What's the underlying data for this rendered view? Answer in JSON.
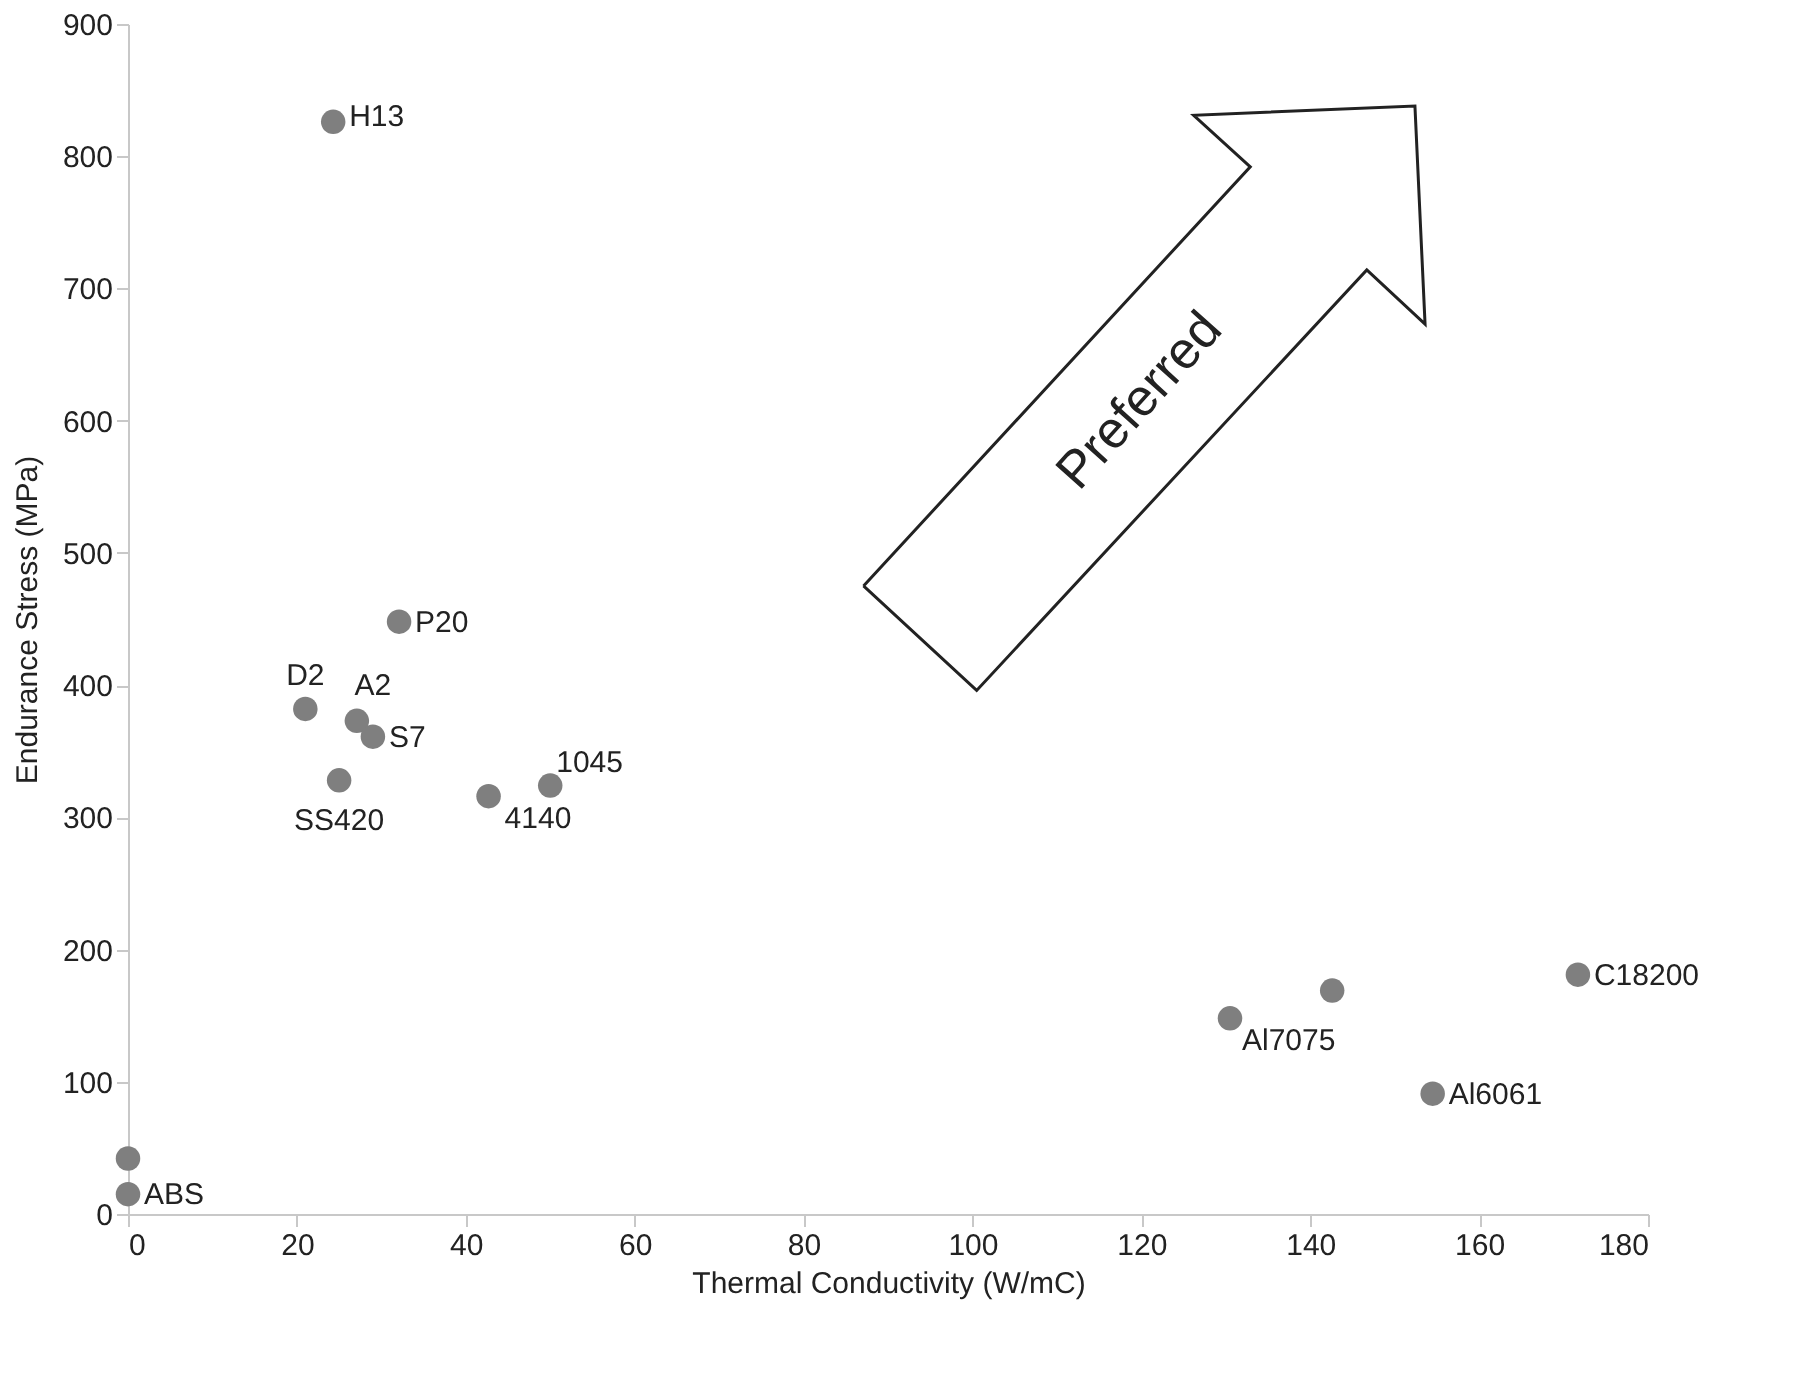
{
  "chart_data": {
    "type": "scatter",
    "xlabel": "Thermal Conductivity (W/mC)",
    "ylabel": "Endurance Stress (MPa)",
    "x": [
      24.3,
      32.1,
      21,
      27.1,
      29,
      25,
      42.7,
      50,
      0,
      0,
      130.5,
      142.6,
      171.7,
      154.5
    ],
    "values": [
      826,
      448,
      382,
      373,
      361,
      328,
      316,
      324,
      42,
      15,
      148,
      169,
      181,
      91
    ],
    "color": "#7f7f7f",
    "marker": "circle",
    "xlim": [
      0,
      180
    ],
    "xticks": [
      0,
      20,
      40,
      60,
      80,
      100,
      120,
      140,
      160,
      180
    ],
    "ylim": [
      0,
      900
    ],
    "yticks": [
      0,
      100,
      200,
      300,
      400,
      500,
      600,
      700,
      800,
      900
    ],
    "grid": false,
    "annotations": [
      {
        "text": "H13",
        "x": 24.3,
        "y": 826
      },
      {
        "text": "P20",
        "x": 32.1,
        "y": 448
      },
      {
        "text": "D2",
        "x": 21,
        "y": 382
      },
      {
        "text": "A2",
        "x": 27.1,
        "y": 373
      },
      {
        "text": "S7",
        "x": 29,
        "y": 361
      },
      {
        "text": "SS420",
        "x": 25,
        "y": 328
      },
      {
        "text": "4140",
        "x": 42.7,
        "y": 316
      },
      {
        "text": "1045",
        "x": 50,
        "y": 324
      },
      {
        "text": "ABS",
        "x": 0,
        "y": 15
      },
      {
        "text": "Al7075",
        "x": 130.5,
        "y": 148
      },
      {
        "text": "C18200",
        "x": 171.7,
        "y": 181
      },
      {
        "text": "Al6061",
        "x": 154.5,
        "y": 91
      },
      "Preferred"
    ]
  }
}
